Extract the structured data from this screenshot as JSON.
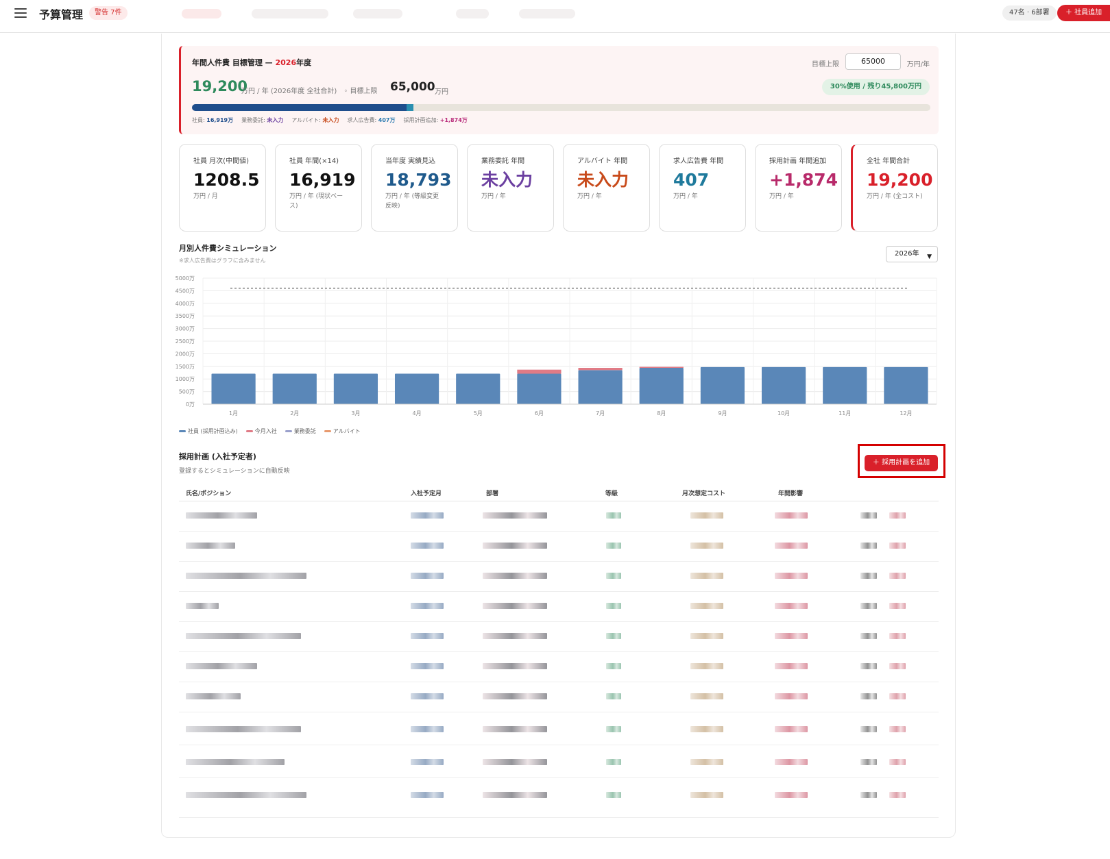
{
  "header": {
    "title": "予算管理",
    "warning_badge": "警告 7件",
    "headcount": "47名 · 6部署",
    "add_employee_label": "＋ 社員追加"
  },
  "target": {
    "title_prefix": "年間人件費 目標管理 — ",
    "year": "2026",
    "title_suffix": "年度",
    "limit_label": "目標上限",
    "limit_value": "65000",
    "limit_unit": "万円/年",
    "total_value": "19,200",
    "total_sub": "万円 / 年 (2026年度 全社合計)　◦ 目標上限",
    "limit_display": "65,000",
    "limit_display_unit": "万円",
    "usage": "30%使用 / 残り45,800万円",
    "usage_fraction": 0.3,
    "breakdown": [
      {
        "label": "社員: ",
        "value": "16,919万",
        "color": "#1f4e8c"
      },
      {
        "label": "業務委託: ",
        "value": "未入力",
        "color": "#6b3fa0"
      },
      {
        "label": "アルバイト: ",
        "value": "未入力",
        "color": "#c84a1a"
      },
      {
        "label": "求人広告費: ",
        "value": "407万",
        "color": "#2a7ab0"
      },
      {
        "label": "採用計画追加: ",
        "value": "+1,874万",
        "color": "#b82a7a"
      }
    ]
  },
  "kpis": [
    {
      "label": "社員 月次(中間値)",
      "value": "1208.5",
      "unit": "万円 / 月",
      "color": "#111111"
    },
    {
      "label": "社員 年間(×14)",
      "value": "16,919",
      "unit": "万円 / 年 (現状ベース)",
      "color": "#111111"
    },
    {
      "label": "当年度 実績見込",
      "value": "18,793",
      "unit": "万円 / 年 (等級変更反映)",
      "color": "#1f5a8c"
    },
    {
      "label": "業務委託 年間",
      "value": "未入力",
      "unit": "万円 / 年",
      "color": "#6b3fa0"
    },
    {
      "label": "アルバイト 年間",
      "value": "未入力",
      "unit": "万円 / 年",
      "color": "#c84a1a"
    },
    {
      "label": "求人広告費 年間",
      "value": "407",
      "unit": "万円 / 年",
      "color": "#1f7a9c"
    },
    {
      "label": "採用計画 年間追加",
      "value": "+1,874",
      "unit": "万円 / 年",
      "color": "#b82a6a"
    },
    {
      "label": "全社 年間合計",
      "value": "19,200",
      "unit": "万円 / 年 (全コスト)",
      "color": "#d9202a"
    }
  ],
  "simulation": {
    "title": "月別人件費シミュレーション",
    "note": "※求人広告費はグラフに含みません",
    "year_select": "2026年"
  },
  "chart_data": {
    "type": "bar",
    "stacked": true,
    "categories": [
      "1月",
      "2月",
      "3月",
      "4月",
      "5月",
      "6月",
      "7月",
      "8月",
      "9月",
      "10月",
      "11月",
      "12月"
    ],
    "series": [
      {
        "name": "社員 (採用計画込み)",
        "color": "#5a87b8",
        "values": [
          1208,
          1208,
          1208,
          1208,
          1208,
          1208,
          1350,
          1440,
          1470,
          1470,
          1470,
          1470
        ]
      },
      {
        "name": "今月入社",
        "color": "#e07b86",
        "values": [
          0,
          0,
          0,
          0,
          0,
          160,
          90,
          40,
          0,
          0,
          0,
          0
        ]
      },
      {
        "name": "業務委託",
        "color": "#9aa0cc",
        "values": [
          0,
          0,
          0,
          0,
          0,
          0,
          0,
          0,
          0,
          0,
          0,
          0
        ]
      },
      {
        "name": "アルバイト",
        "color": "#e89a6e",
        "values": [
          0,
          0,
          0,
          0,
          0,
          0,
          0,
          0,
          0,
          0,
          0,
          0
        ]
      }
    ],
    "y_ticks": [
      "0万",
      "500万",
      "1000万",
      "1500万",
      "2000万",
      "2500万",
      "3000万",
      "3500万",
      "4000万",
      "4500万",
      "5000万"
    ],
    "ylim": [
      0,
      5000
    ],
    "target_line": 4600,
    "grid": true,
    "legend": "bottom-left"
  },
  "hiring": {
    "title": "採用計画 (入社予定者)",
    "note": "登録するとシミュレーションに自動反映",
    "add_label": "＋ 採用計画を追加",
    "columns": [
      "氏名/ポジション",
      "入社予定月",
      "部署",
      "等級",
      "月次想定コスト",
      "年間影響"
    ]
  }
}
